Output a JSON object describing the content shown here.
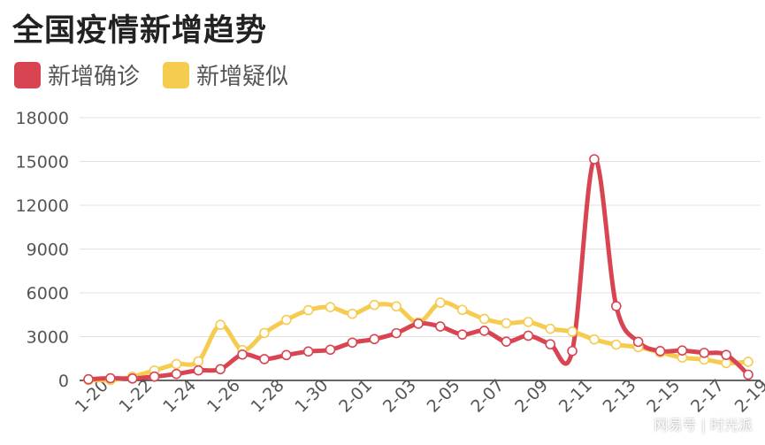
{
  "title": "全国疫情新增趋势",
  "watermark": "网易号 | 时光派",
  "colors": {
    "confirmed": "#d94452",
    "suspected": "#f5cc50",
    "axis": "#333333",
    "grid": "#e1e1e1"
  },
  "chart_data": {
    "type": "line",
    "title": "全国疫情新增趋势",
    "xlabel": "",
    "ylabel": "",
    "ylim": [
      0,
      18000
    ],
    "yticks": [
      0,
      3000,
      6000,
      9000,
      12000,
      15000,
      18000
    ],
    "grid": true,
    "legend_position": "top-left",
    "x": [
      "1-20",
      "1-21",
      "1-22",
      "1-23",
      "1-24",
      "1-25",
      "1-26",
      "1-27",
      "1-28",
      "1-29",
      "1-30",
      "1-31",
      "2-01",
      "2-02",
      "2-03",
      "2-04",
      "2-05",
      "2-06",
      "2-07",
      "2-08",
      "2-09",
      "2-10",
      "2-11",
      "2-12",
      "2-13",
      "2-14",
      "2-15",
      "2-16",
      "2-17",
      "2-18",
      "2-19"
    ],
    "x_tick_labels": [
      "1-20",
      "1-22",
      "1-24",
      "1-26",
      "1-28",
      "1-30",
      "2-01",
      "2-03",
      "2-05",
      "2-07",
      "2-09",
      "2-11",
      "2-13",
      "2-15",
      "2-17",
      "2-19"
    ],
    "series": [
      {
        "name": "新增确诊",
        "color": "#d94452",
        "values": [
          77,
          149,
          131,
          259,
          444,
          688,
          769,
          1771,
          1459,
          1737,
          1982,
          2102,
          2590,
          2829,
          3235,
          3887,
          3694,
          3143,
          3399,
          2656,
          3062,
          2478,
          2015,
          15152,
          5090,
          2641,
          2009,
          2048,
          1886,
          1749,
          394
        ]
      },
      {
        "name": "新增疑似",
        "color": "#f5cc50",
        "values": [
          27,
          26,
          257,
          680,
          1118,
          1309,
          3806,
          2077,
          3248,
          4148,
          4812,
          5019,
          4562,
          5173,
          5072,
          3971,
          5328,
          4833,
          4214,
          3916,
          4008,
          3536,
          3342,
          2807,
          2450,
          2277,
          1918,
          1563,
          1432,
          1185,
          1277
        ]
      }
    ]
  }
}
